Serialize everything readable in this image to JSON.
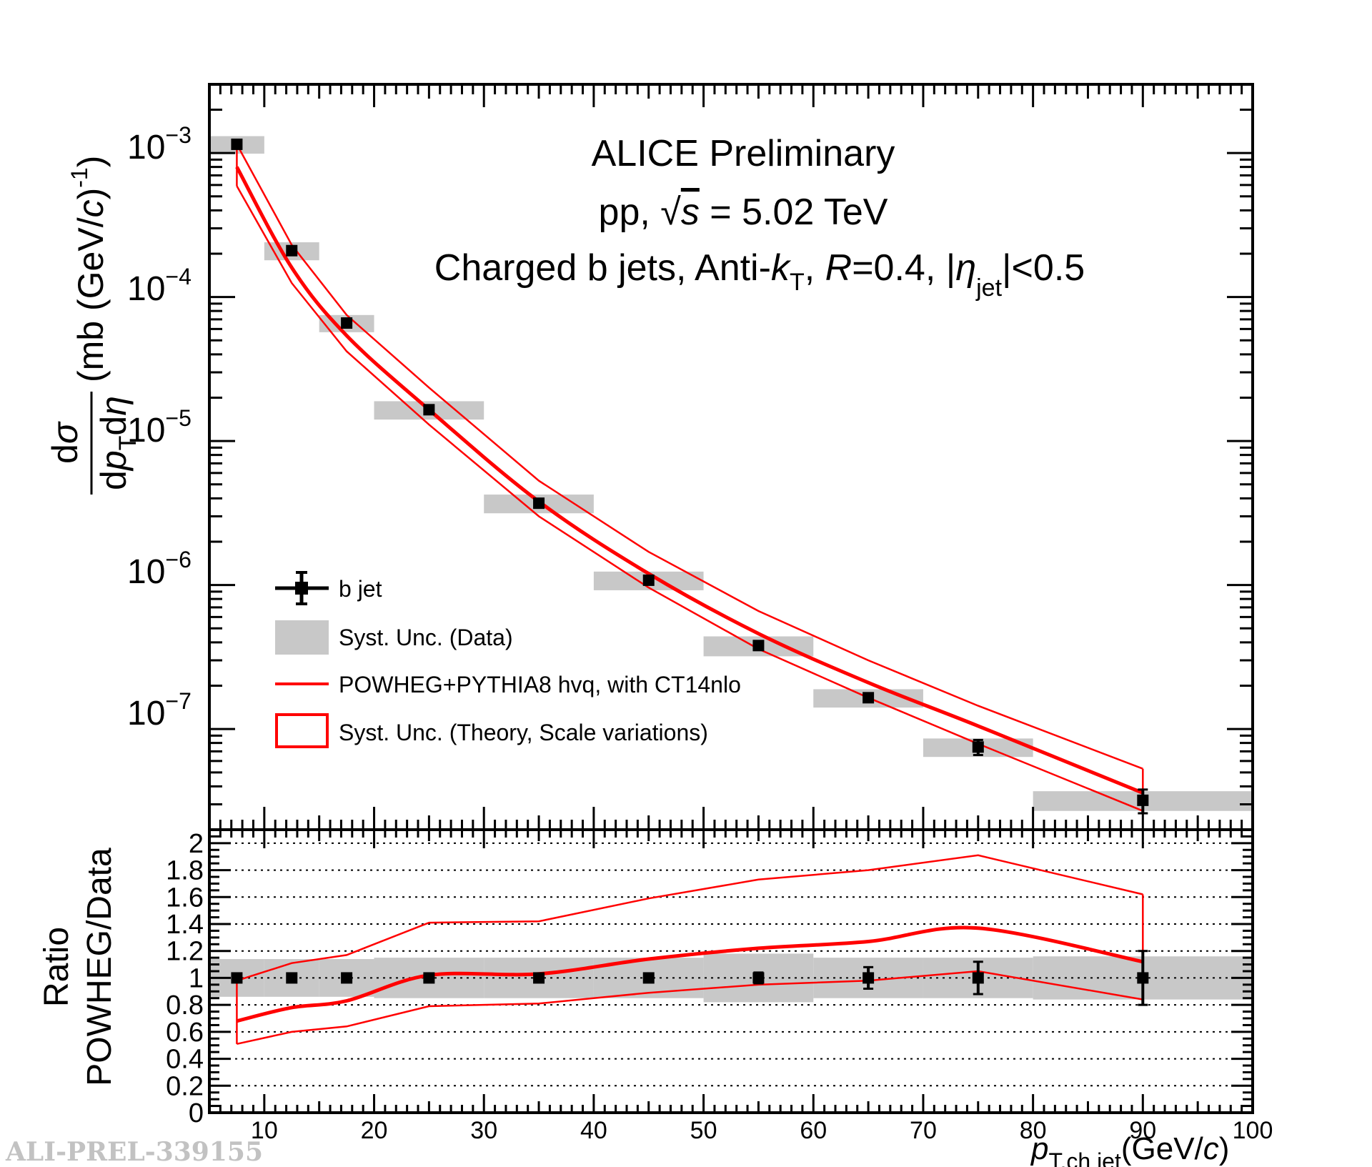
{
  "chart_data": {
    "type": "scatter",
    "watermark": "ALI-PREL-339155",
    "annotations": {
      "line1": "ALICE Preliminary",
      "line2_pre": "pp,",
      "line2_sqrt": "√",
      "line2_s": "s",
      "line2_post": "= 5.02 TeV",
      "line3_pre": "Charged b jets, Anti-",
      "line3_k": "k",
      "line3_ksub": "T",
      "line3_sep": ", ",
      "line3_R": "R",
      "line3_mid": "=0.4, |",
      "line3_eta": "η",
      "line3_etasub": "jet",
      "line3_post": "|<0.5"
    },
    "xaxis": {
      "min": 5,
      "max": 100,
      "ticks": [
        "10",
        "20",
        "30",
        "40",
        "50",
        "60",
        "70",
        "80",
        "90",
        "100"
      ],
      "label_p": "p",
      "label_sub": "T,ch jet",
      "label_unit_pre": "(GeV/",
      "label_unit_c": "c",
      "label_unit_post": ")"
    },
    "top_panel": {
      "yscale": "log",
      "ylim": [
        2e-08,
        0.003
      ],
      "ytick_base": "10",
      "ytick_exps": [
        "−3",
        "−4",
        "−5",
        "−6",
        "−7"
      ],
      "ylabel": {
        "num_d": "d",
        "num_sigma": "σ",
        "den_d": "d",
        "den_p": "p",
        "den_psub": "T",
        "den_d2": "d",
        "den_eta": "η",
        "unit_pre": "(mb (GeV/",
        "unit_c": "c",
        "unit_mid": ")",
        "unit_sup": "-1",
        "unit_post": ")"
      },
      "data": {
        "name": "b jet",
        "x": [
          7.5,
          12.5,
          17.5,
          25,
          35,
          45,
          55,
          65,
          75,
          90
        ],
        "xerr_low": [
          2.5,
          2.5,
          2.5,
          5,
          5,
          5,
          5,
          5,
          5,
          10
        ],
        "xerr_high": [
          2.5,
          2.5,
          2.5,
          5,
          5,
          5,
          5,
          5,
          5,
          10
        ],
        "y": [
          0.00115,
          0.00021,
          6.6e-05,
          1.65e-05,
          3.7e-06,
          1.08e-06,
          3.8e-07,
          1.65e-07,
          7.5e-08,
          3.2e-08
        ],
        "stat_low": [
          1.2e-05,
          3e-06,
          1e-06,
          3e-07,
          8e-08,
          3e-08,
          1.3e-08,
          1e-08,
          9e-09,
          6e-09
        ],
        "stat_high": [
          1.2e-05,
          3e-06,
          1e-06,
          3e-07,
          8e-08,
          3e-08,
          1.3e-08,
          1e-08,
          9e-09,
          6e-09
        ],
        "syst_low": [
          0.00016,
          3e-05,
          9e-06,
          2.4e-06,
          5.5e-07,
          1.6e-07,
          6e-08,
          2.4e-08,
          1.1e-08,
          5e-09
        ],
        "syst_high": [
          0.00016,
          3e-05,
          9e-06,
          2.4e-06,
          5.5e-07,
          1.6e-07,
          6e-08,
          2.4e-08,
          1.1e-08,
          5e-09
        ]
      },
      "theory": {
        "name": "POWHEG+PYTHIA8 hvq, with CT14nlo",
        "x": [
          7.5,
          12.5,
          17.5,
          25,
          35,
          45,
          55,
          65,
          75,
          90
        ],
        "central": [
          0.0008,
          0.00016,
          5.4e-05,
          1.65e-05,
          3.8e-06,
          1.2e-06,
          4.6e-07,
          2.1e-07,
          1.05e-07,
          3.6e-08
        ],
        "upper": [
          0.00115,
          0.00023,
          7.5e-05,
          2.35e-05,
          5.3e-06,
          1.7e-06,
          6.6e-07,
          3e-07,
          1.45e-07,
          5.3e-08
        ],
        "lower": [
          0.00059,
          0.000125,
          4.2e-05,
          1.3e-05,
          3e-06,
          9.6e-07,
          3.6e-07,
          1.65e-07,
          7.9e-08,
          2.7e-08
        ]
      },
      "legend": [
        "b jet",
        "Syst. Unc. (Data)",
        "POWHEG+PYTHIA8 hvq, with CT14nlo",
        "Syst. Unc. (Theory, Scale variations)"
      ]
    },
    "bottom_panel": {
      "ylim": [
        0,
        2.1
      ],
      "yticks": [
        "0",
        "0.2",
        "0.4",
        "0.6",
        "0.8",
        "1",
        "1.2",
        "1.4",
        "1.6",
        "1.8",
        "2"
      ],
      "ytick_values": [
        0,
        0.2,
        0.4,
        0.6,
        0.8,
        1.0,
        1.2,
        1.4,
        1.6,
        1.8,
        2.0
      ],
      "ylabel_1": "Ratio",
      "ylabel_2": "POWHEG/Data",
      "data": {
        "x": [
          7.5,
          12.5,
          17.5,
          25,
          35,
          45,
          55,
          65,
          75,
          90
        ],
        "y": [
          1,
          1,
          1,
          1,
          1,
          1,
          1,
          1,
          1,
          1
        ],
        "stat_err": [
          0.01,
          0.015,
          0.015,
          0.02,
          0.02,
          0.025,
          0.04,
          0.08,
          0.12,
          0.2
        ],
        "syst_err": [
          0.14,
          0.14,
          0.14,
          0.15,
          0.15,
          0.15,
          0.18,
          0.15,
          0.15,
          0.16
        ]
      },
      "theory": {
        "x": [
          7.5,
          12.5,
          17.5,
          25,
          35,
          45,
          55,
          65,
          75,
          90
        ],
        "central": [
          0.68,
          0.78,
          0.83,
          1.02,
          1.03,
          1.14,
          1.22,
          1.27,
          1.37,
          1.12
        ],
        "upper": [
          0.98,
          1.11,
          1.17,
          1.41,
          1.42,
          1.59,
          1.73,
          1.8,
          1.91,
          1.62
        ],
        "lower": [
          0.51,
          0.6,
          0.64,
          0.79,
          0.81,
          0.89,
          0.95,
          0.98,
          1.05,
          0.84
        ]
      }
    }
  },
  "colors": {
    "theory": "#ff0000",
    "syst_band": "#c8c8c8",
    "marker": "#000000",
    "watermark": "#c2c2c2"
  }
}
